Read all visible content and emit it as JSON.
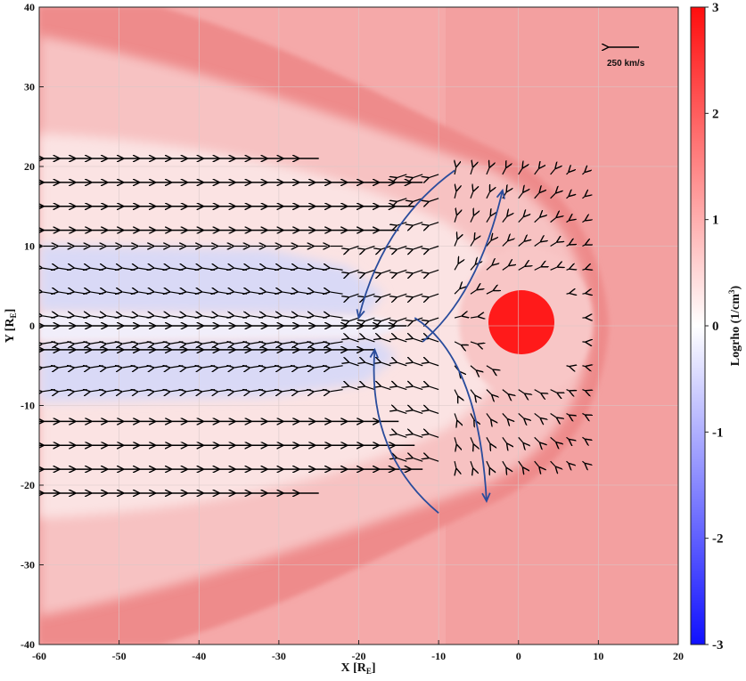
{
  "chart_data": {
    "type": "heatmap",
    "subtype": "density map with velocity vectors",
    "xlabel": "X [R",
    "xlabel_sub": "E",
    "xlabel_end": "]",
    "ylabel": "Y [R",
    "ylabel_sub": "E",
    "ylabel_end": "]",
    "xlim": [
      -60,
      20
    ],
    "ylim": [
      -40,
      40
    ],
    "xticks": [
      -60,
      -50,
      -40,
      -30,
      -20,
      -10,
      0,
      10,
      20
    ],
    "yticks": [
      -40,
      -30,
      -20,
      -10,
      0,
      10,
      20,
      30,
      40
    ],
    "grid": true,
    "colorbar": {
      "label": "Logrho (1/cm",
      "label_sup": "3",
      "label_end": ")",
      "min": -3,
      "max": 3,
      "ticks": [
        -3,
        -2,
        -1,
        0,
        1,
        2,
        3
      ],
      "colormap": "blue-white-red"
    },
    "colors": {
      "solar_wind_bg": "#f4a1a1",
      "magnetosheath": "#f8c8c8",
      "bow_shock": "#ec7f7f",
      "tail_lobe": "#dcdcf7",
      "inner_magnetosphere": "#fad2d2",
      "earth_core": "#ff1a1a",
      "flow_curves": "#2a4c9c",
      "arrows": "#000000"
    },
    "reference_vector": {
      "label": "250 km/s",
      "speed_kms": 250
    },
    "tail_flow_rows": [
      {
        "y": 21,
        "x_start": -25,
        "x_end": -60
      },
      {
        "y": 18,
        "x_start": -12,
        "x_end": -60
      },
      {
        "y": 15,
        "x_start": -13,
        "x_end": -60
      },
      {
        "y": 12,
        "x_start": -15,
        "x_end": -60
      },
      {
        "y": 0,
        "x_start": -14,
        "x_end": -60
      },
      {
        "y": -3,
        "x_start": -18,
        "x_end": -60
      },
      {
        "y": -12,
        "x_start": -15,
        "x_end": -60
      },
      {
        "y": -15,
        "x_start": -13,
        "x_end": -60
      },
      {
        "y": -18,
        "x_start": -12,
        "x_end": -60
      },
      {
        "y": -21,
        "x_start": -25,
        "x_end": -60
      }
    ],
    "flow_curves": [
      {
        "name": "",
        "points": [
          [
            -8,
            19.5
          ],
          [
            -17,
            13
          ],
          [
            -20,
            1
          ]
        ]
      },
      {
        "name": "",
        "points": [
          [
            -12,
            -2
          ],
          [
            -5,
            4
          ],
          [
            -2,
            17
          ]
        ]
      },
      {
        "name": "",
        "points": [
          [
            -13,
            1
          ],
          [
            -5,
            -4
          ],
          [
            -4,
            -22
          ]
        ]
      },
      {
        "name": "",
        "points": [
          [
            -10,
            -23.5
          ],
          [
            -19,
            -16
          ],
          [
            -18,
            -3
          ]
        ]
      }
    ],
    "annotations": [
      "250 km/s"
    ]
  }
}
